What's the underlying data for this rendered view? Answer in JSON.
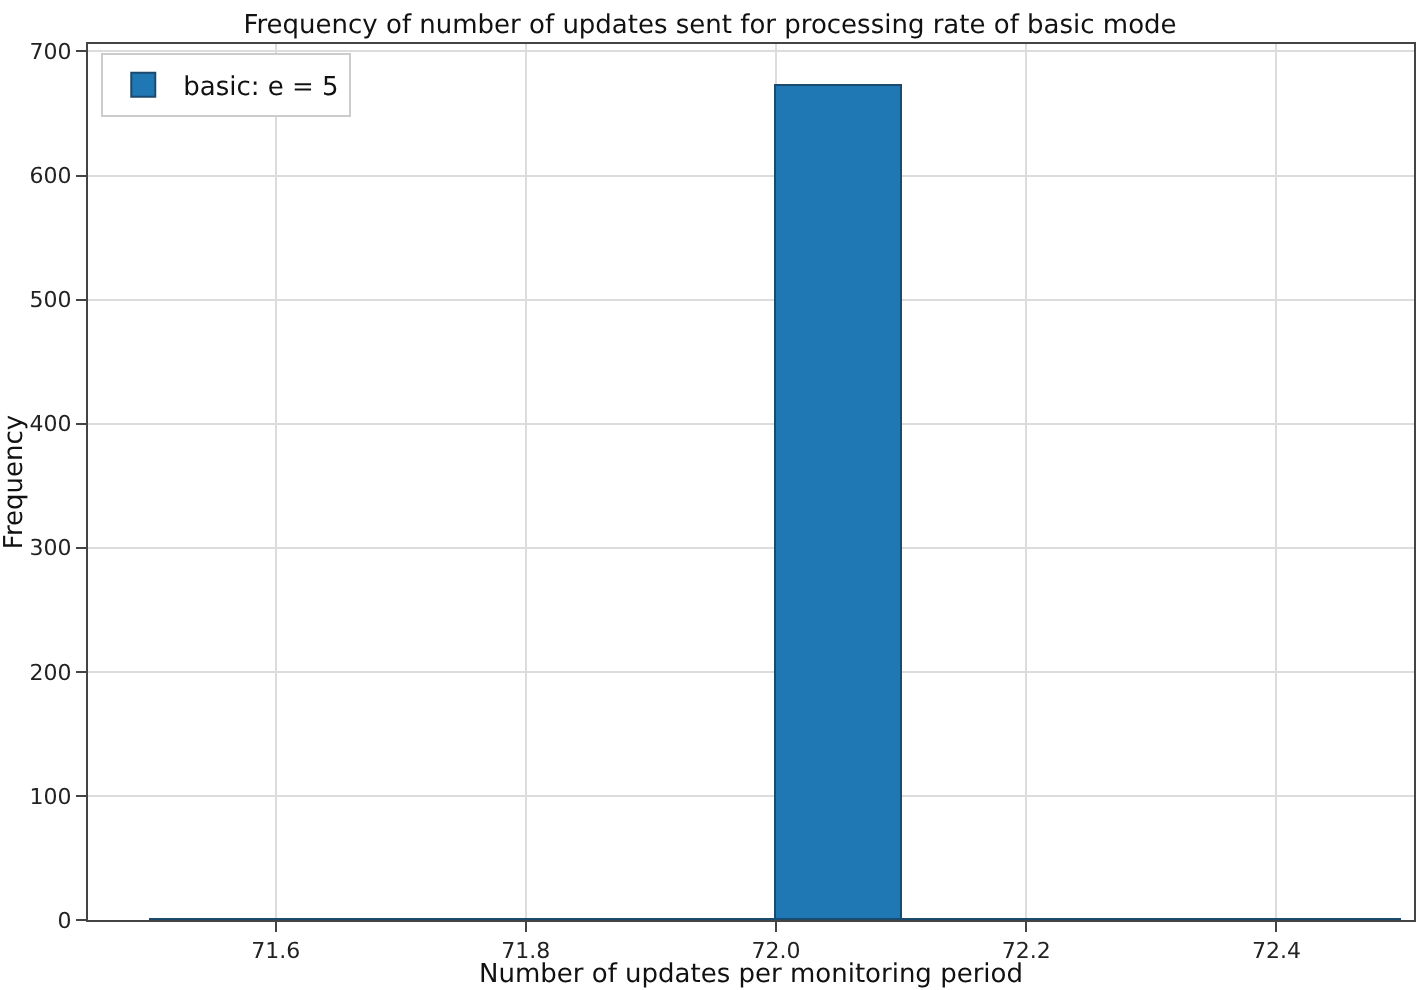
{
  "chart_data": {
    "type": "histogram",
    "title": "Frequency of number of updates sent for processing rate of basic mode",
    "xlabel": "Number of updates per monitoring period",
    "ylabel": "Frequency",
    "bins": [
      71.5,
      71.6,
      71.7,
      71.8,
      71.9,
      72.0,
      72.1,
      72.2,
      72.3,
      72.4,
      72.5
    ],
    "series": [
      {
        "name": "basic: e = 5",
        "color": "#1f77b4",
        "values": [
          0,
          0,
          0,
          0,
          0,
          672,
          0,
          0,
          0,
          0
        ]
      }
    ],
    "xlim": [
      71.45,
      72.51
    ],
    "xticks": [
      71.6,
      71.8,
      {
        "value": 72.0,
        "label": "72.0"
      },
      72.2,
      72.4
    ],
    "ylim": [
      0,
      706
    ],
    "yticks": [
      0,
      100,
      200,
      300,
      400,
      500,
      600,
      700
    ],
    "grid": true,
    "legend": "top left"
  }
}
